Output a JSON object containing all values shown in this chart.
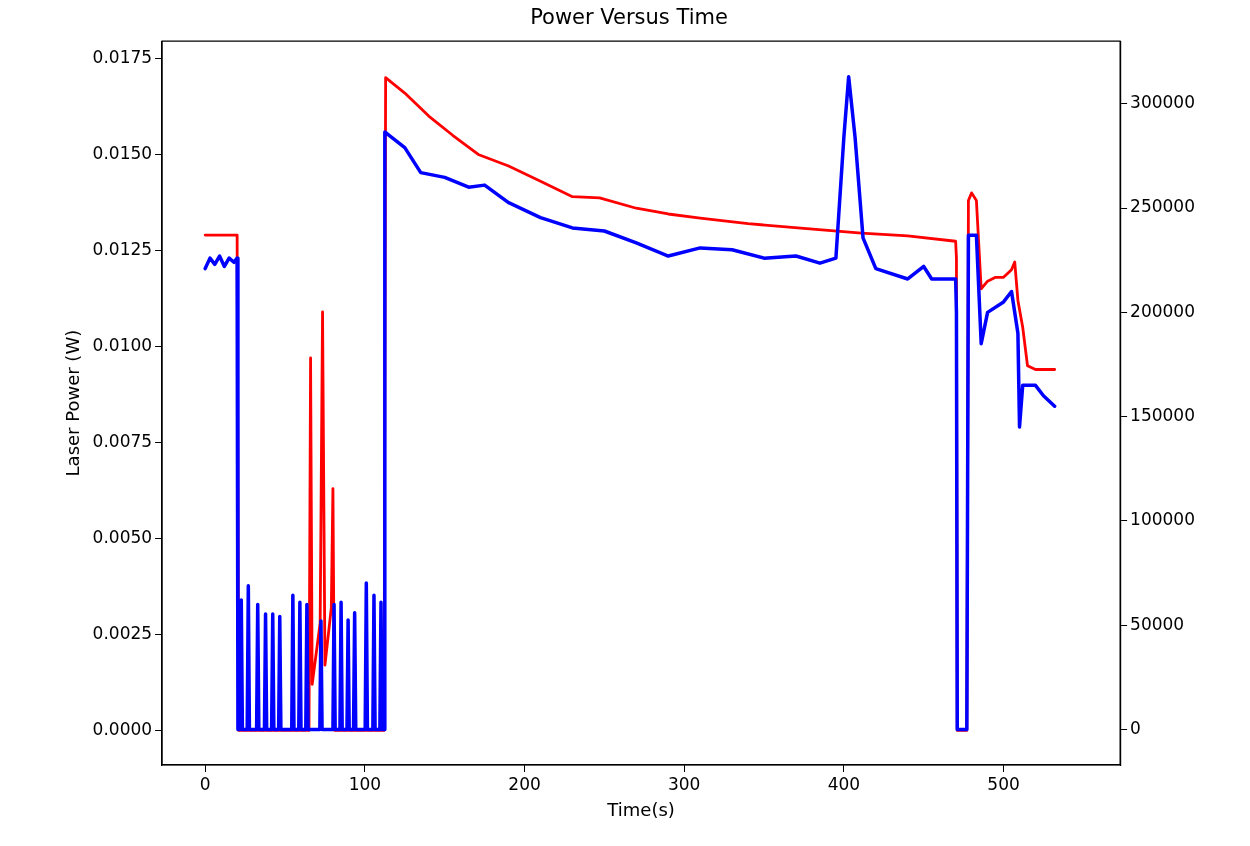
{
  "chart_data": {
    "type": "line",
    "title": "Power Versus Time",
    "xlabel": "Time(s)",
    "ylabel": "Laser Power (W)",
    "xlim": [
      -27,
      573
    ],
    "xticks": [
      0,
      100,
      200,
      300,
      400,
      500
    ],
    "ylim": [
      -0.0009,
      0.01795
    ],
    "yticks": [
      {
        "value": 0,
        "label": "0.0000"
      },
      {
        "value": 0.0025,
        "label": "0.0025"
      },
      {
        "value": 0.005,
        "label": "0.0050"
      },
      {
        "value": 0.0075,
        "label": "0.0075"
      },
      {
        "value": 0.01,
        "label": "0.0100"
      },
      {
        "value": 0.0125,
        "label": "0.0125"
      },
      {
        "value": 0.015,
        "label": "0.0150"
      },
      {
        "value": 0.0175,
        "label": "0.0175"
      }
    ],
    "y2lim": [
      -17000,
      330000
    ],
    "y2ticks": [
      0,
      50000,
      100000,
      150000,
      200000,
      250000,
      300000
    ],
    "grid": false,
    "legend": false,
    "marker": "none",
    "line_style": "solid",
    "series": [
      {
        "color": "#ff0000",
        "x": [
          0,
          20,
          21,
          65,
          66,
          67,
          72,
          73.5,
          75,
          79,
          80,
          81,
          112,
          113,
          125,
          140,
          155,
          171,
          190,
          210,
          230,
          247,
          270,
          290,
          310,
          340,
          373,
          411,
          440,
          470,
          470.5,
          471,
          477,
          478,
          480,
          483,
          486,
          490,
          495,
          500,
          505,
          507,
          509,
          512,
          515,
          520,
          525,
          532
        ],
        "values": [
          0.0129,
          0.0129,
          0,
          0,
          0.0097,
          0.0012,
          0.0028,
          0.0109,
          0.0017,
          0.0032,
          0.0063,
          0,
          0,
          0.017,
          0.0166,
          0.016,
          0.0155,
          0.015,
          0.0147,
          0.0143,
          0.0139,
          0.01387,
          0.0136,
          0.01345,
          0.01334,
          0.0132,
          0.01308,
          0.01295,
          0.01288,
          0.01274,
          0.0123,
          0,
          0,
          0.0138,
          0.014,
          0.0138,
          0.0115,
          0.0117,
          0.0118,
          0.0118,
          0.012,
          0.0122,
          0.0112,
          0.0105,
          0.0095,
          0.0094,
          0.0094,
          0.0094
        ]
      },
      {
        "color": "#0000ff",
        "axis": "y2",
        "x": [
          0,
          3,
          6,
          9,
          12,
          15,
          18,
          20,
          20.5,
          21.9,
          22.6,
          23.3,
          26.3,
          27,
          27.7,
          32.2,
          32.9,
          33.6,
          37.1,
          37.8,
          38.5,
          41.6,
          42.3,
          43,
          46,
          46.7,
          47.4,
          54.2,
          54.9,
          55.6,
          58.6,
          59.3,
          60,
          63,
          63.7,
          64.4,
          71.8,
          72.5,
          73.2,
          80,
          80.7,
          81.4,
          84.4,
          85.1,
          85.8,
          88.8,
          89.5,
          90.2,
          92.9,
          93.6,
          94.3,
          100.2,
          100.9,
          101.6,
          105,
          105.7,
          106.4,
          109.4,
          110.1,
          110.8,
          112,
          112.5,
          115,
          125,
          135,
          150,
          165,
          175,
          190,
          210,
          230,
          250,
          270,
          290,
          310,
          330,
          350,
          370,
          385,
          395,
          400,
          403,
          407,
          412,
          420,
          440,
          450,
          455,
          470,
          470.5,
          471,
          477,
          478,
          483,
          486,
          490,
          500,
          505,
          509,
          510,
          512,
          520,
          525,
          532
        ],
        "values": [
          221000,
          226000,
          223000,
          227000,
          222000,
          226000,
          224000,
          226000,
          0,
          0,
          62100,
          0,
          0,
          68900,
          0,
          0,
          60000,
          0,
          0,
          55400,
          0,
          0,
          55400,
          0,
          0,
          54200,
          0,
          0,
          64400,
          0,
          0,
          61000,
          0,
          0,
          60000,
          0,
          0,
          52000,
          0,
          0,
          60000,
          0,
          0,
          61000,
          0,
          0,
          52500,
          0,
          0,
          56000,
          0,
          0,
          70200,
          0,
          0,
          64400,
          0,
          0,
          61000,
          0,
          0,
          286500,
          285000,
          279000,
          267000,
          264700,
          260000,
          261000,
          252600,
          245400,
          240500,
          239000,
          233300,
          227000,
          230900,
          230000,
          226000,
          227000,
          223600,
          226000,
          284000,
          313000,
          284000,
          235700,
          221000,
          216000,
          222000,
          216000,
          216000,
          200000,
          0,
          0,
          237000,
          237000,
          185000,
          200000,
          205000,
          210000,
          190000,
          145000,
          165000,
          165000,
          160000,
          155000
        ]
      }
    ]
  }
}
